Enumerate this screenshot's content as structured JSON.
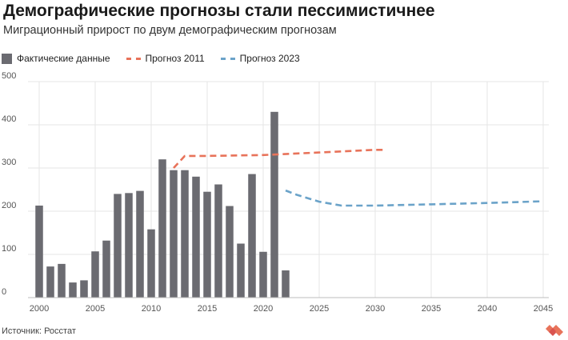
{
  "header": {
    "title": "Демографические прогнозы стали пессимистичнее",
    "subtitle": "Миграционный прирост по двум демографическим прогнозам"
  },
  "legend": {
    "actual": "Фактические данные",
    "forecast2011": "Прогноз 2011",
    "forecast2023": "Прогноз 2023"
  },
  "footer": {
    "source": "Источник: Росстат"
  },
  "colors": {
    "bar": "#6b6b71",
    "forecast2011": "#e8735a",
    "forecast2023": "#6ba3c9",
    "grid": "#e6e6e6"
  },
  "chart_data": {
    "type": "bar",
    "title": "Демографические прогнозы стали пессимистичнее",
    "subtitle": "Миграционный прирост по двум демографическим прогнозам",
    "xlim": [
      1999,
      2045.5
    ],
    "ylim": [
      0,
      500
    ],
    "xticks": [
      2000,
      2005,
      2010,
      2015,
      2020,
      2025,
      2030,
      2035,
      2040,
      2045
    ],
    "yticks": [
      0,
      100,
      200,
      300,
      400,
      500
    ],
    "grid": true,
    "legend_position": "top-left",
    "series": [
      {
        "name": "Фактические данные",
        "type": "bar",
        "x": [
          2000,
          2001,
          2002,
          2003,
          2004,
          2005,
          2006,
          2007,
          2008,
          2009,
          2010,
          2011,
          2012,
          2013,
          2014,
          2015,
          2016,
          2017,
          2018,
          2019,
          2020,
          2021,
          2022
        ],
        "values": [
          213,
          72,
          78,
          35,
          40,
          107,
          132,
          240,
          242,
          247,
          158,
          320,
          295,
          295,
          280,
          245,
          262,
          212,
          125,
          286,
          106,
          430,
          63
        ]
      },
      {
        "name": "Прогноз 2011",
        "type": "line",
        "x": [
          2012,
          2013,
          2015,
          2020,
          2025,
          2030,
          2031
        ],
        "values": [
          300,
          328,
          328,
          330,
          336,
          342,
          342
        ]
      },
      {
        "name": "Прогноз 2023",
        "type": "line",
        "x": [
          2022,
          2023,
          2025,
          2027,
          2030,
          2035,
          2040,
          2045
        ],
        "values": [
          248,
          238,
          222,
          213,
          213,
          216,
          219,
          223
        ]
      }
    ]
  }
}
